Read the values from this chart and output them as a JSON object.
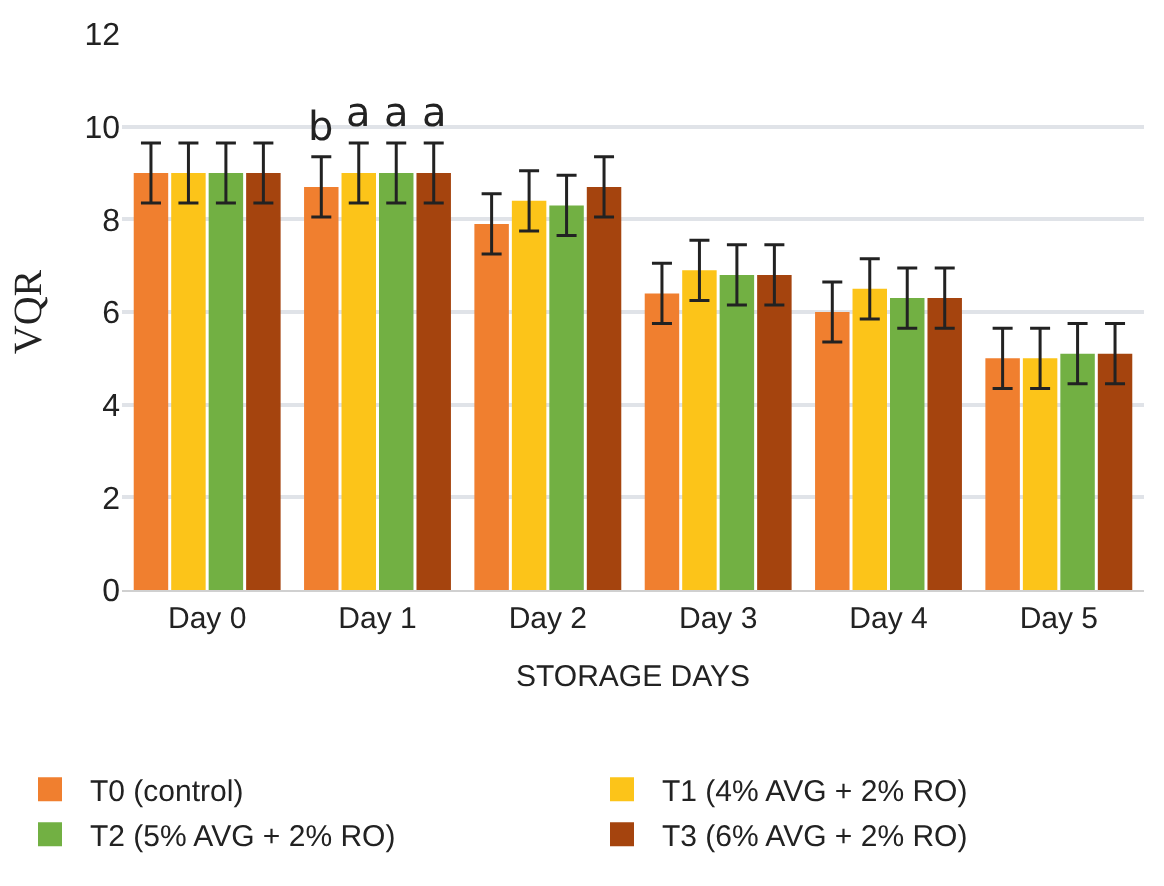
{
  "chart_data": {
    "type": "bar",
    "xlabel": "STORAGE DAYS",
    "ylabel": "VQR",
    "categories": [
      "Day 0",
      "Day 1",
      "Day 2",
      "Day 3",
      "Day 4",
      "Day 5"
    ],
    "series": [
      {
        "name": "T0 (control)",
        "color": "#f07f2f",
        "values": [
          9.0,
          8.7,
          7.9,
          6.4,
          6.0,
          5.0
        ],
        "errors": [
          0.65,
          0.65,
          0.65,
          0.65,
          0.65,
          0.65
        ],
        "value_labels": [
          null,
          "b",
          null,
          null,
          null,
          null
        ]
      },
      {
        "name": "T1 (4% AVG + 2% RO)",
        "color": "#fcc419",
        "values": [
          9.0,
          9.0,
          8.4,
          6.9,
          6.5,
          5.0
        ],
        "errors": [
          0.65,
          0.65,
          0.65,
          0.65,
          0.65,
          0.65
        ],
        "value_labels": [
          null,
          "a",
          null,
          null,
          null,
          null
        ]
      },
      {
        "name": "T2 (5% AVG + 2% RO)",
        "color": "#72b043",
        "values": [
          9.0,
          9.0,
          8.3,
          6.8,
          6.3,
          5.1
        ],
        "errors": [
          0.65,
          0.65,
          0.65,
          0.65,
          0.65,
          0.65
        ],
        "value_labels": [
          null,
          "a",
          null,
          null,
          null,
          null
        ]
      },
      {
        "name": "T3 (6% AVG + 2% RO)",
        "color": "#a5440e",
        "values": [
          9.0,
          9.0,
          8.7,
          6.8,
          6.3,
          5.1
        ],
        "errors": [
          0.65,
          0.65,
          0.65,
          0.65,
          0.65,
          0.65
        ],
        "value_labels": [
          null,
          "a",
          null,
          null,
          null,
          null
        ]
      }
    ],
    "ylim": [
      0,
      12
    ],
    "yticks": [
      0,
      2,
      4,
      6,
      8,
      10,
      12
    ],
    "grid": "y",
    "legend": "bottom"
  }
}
